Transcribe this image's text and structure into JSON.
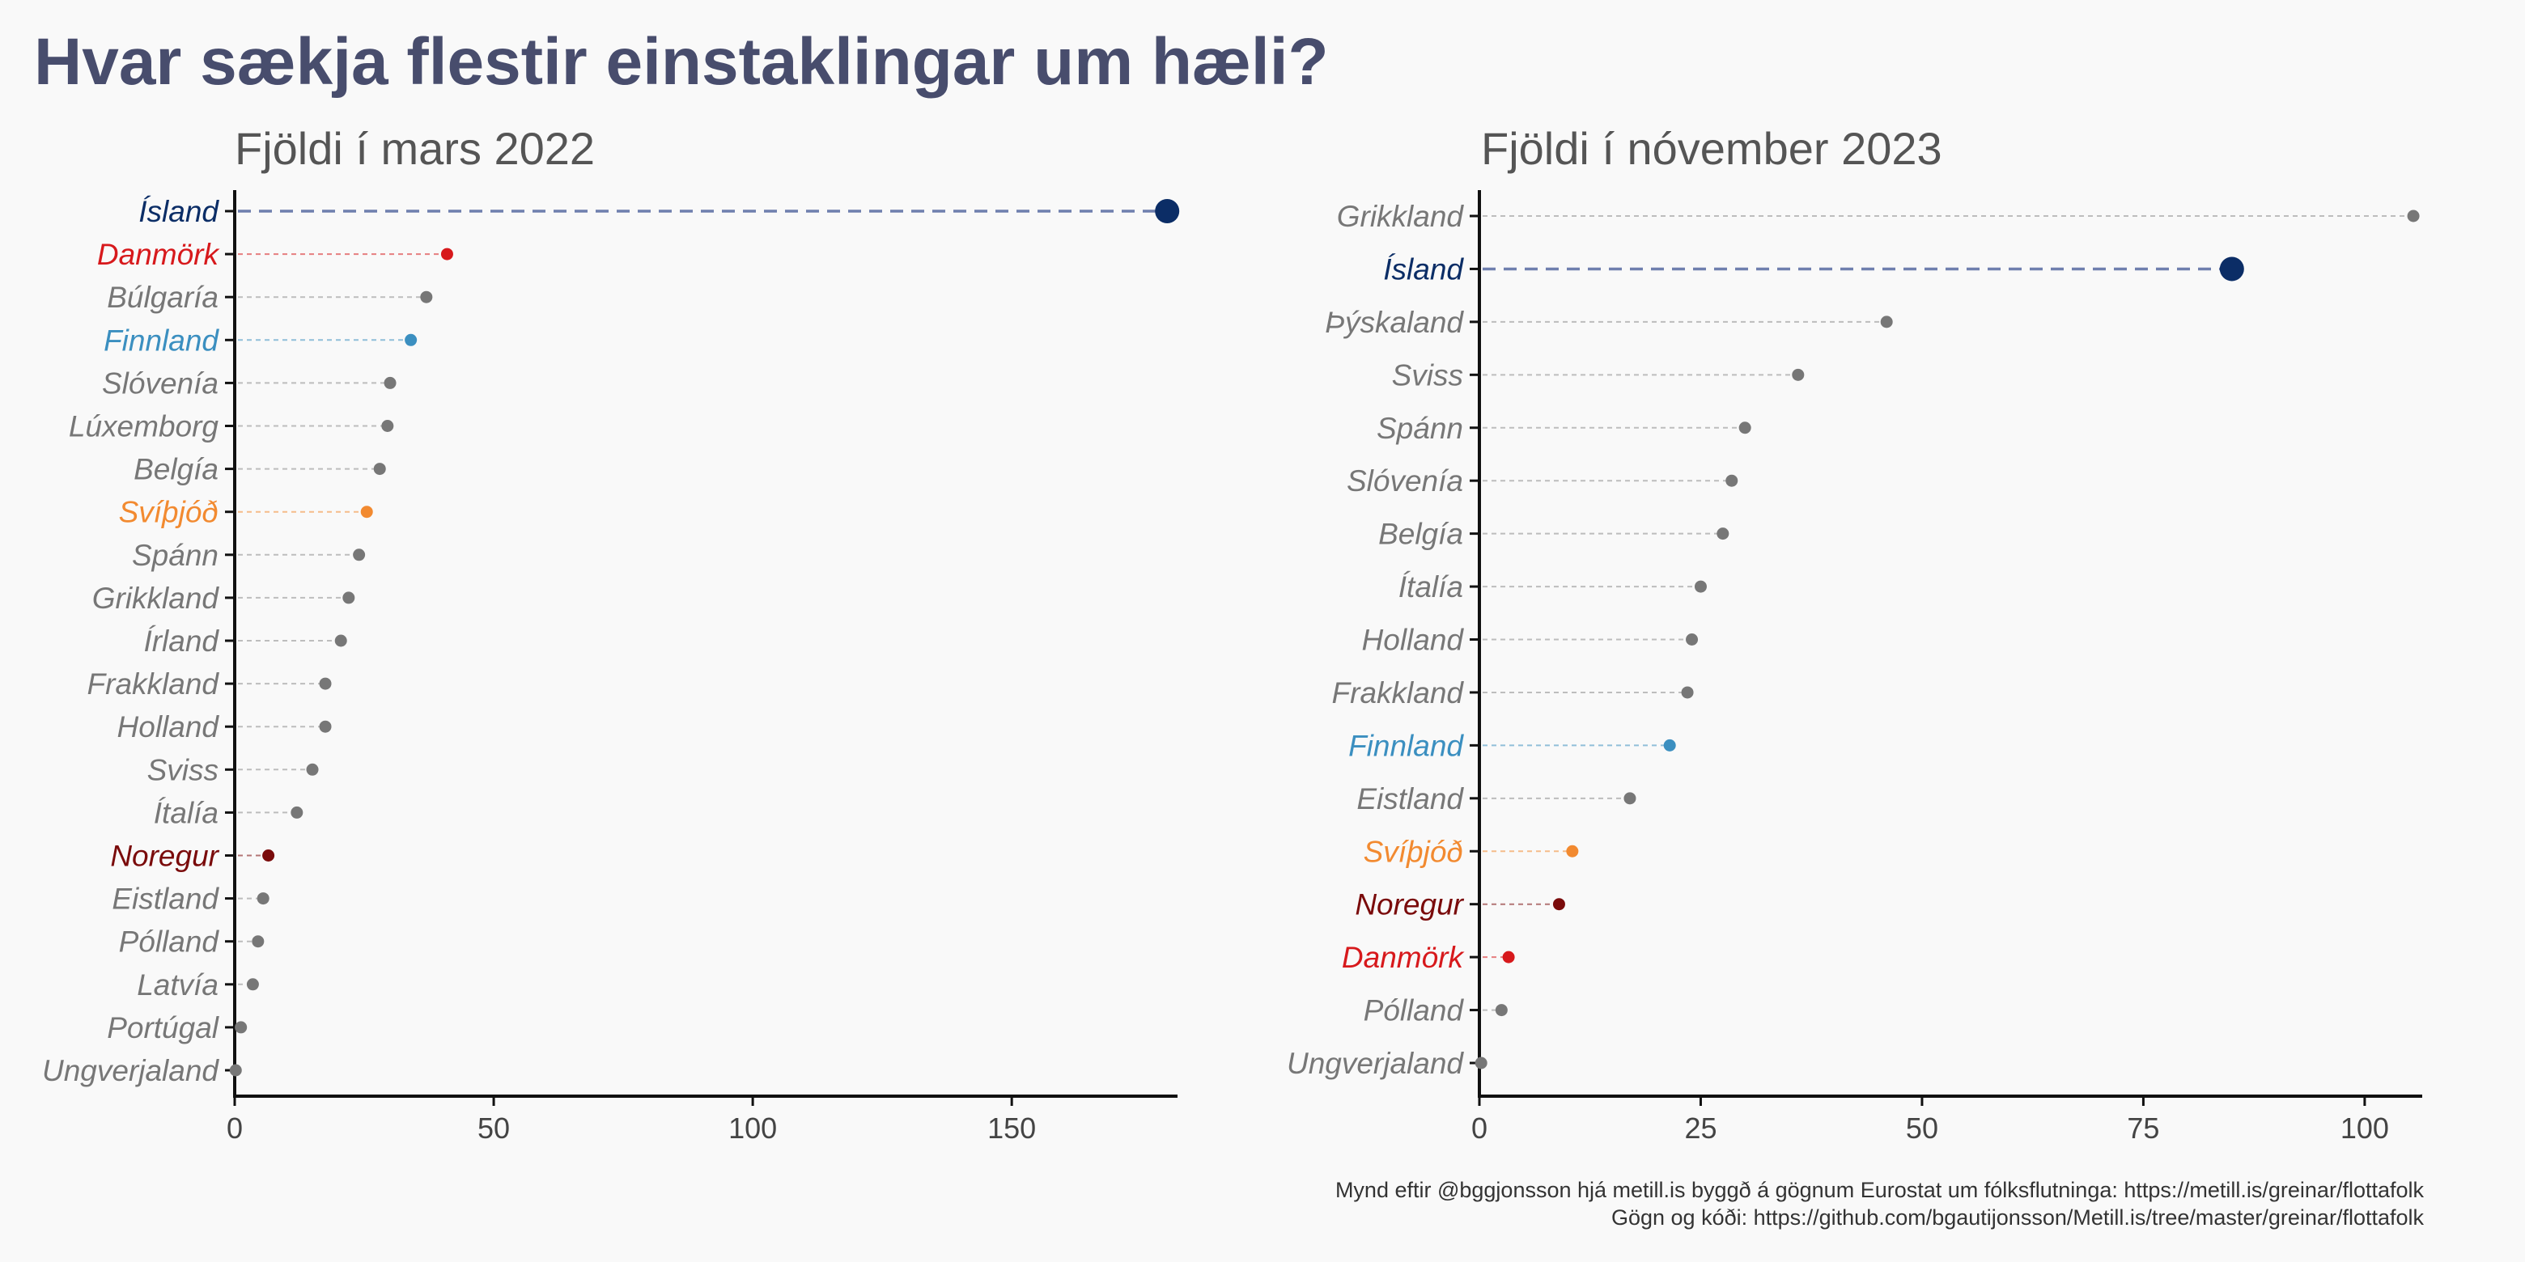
{
  "title": "Hvar sækja flestir einstaklingar um hæli?",
  "colors": {
    "iceland": "#0b2d66",
    "danmark": "#d7191c",
    "finnland": "#3b8fc0",
    "svithjod": "#f28a30",
    "noregur": "#7a0b0b",
    "other": "#777777",
    "title": "#484d6d",
    "subtitle": "#555555"
  },
  "chart_data": [
    {
      "type": "lollipop",
      "subtitle": "Fjöldi í mars 2022",
      "xlim": [
        0,
        182
      ],
      "xticks": [
        0,
        50,
        100,
        150
      ],
      "xlabel": "",
      "ylabel": "",
      "categories": [
        "Ísland",
        "Danmörk",
        "Búlgaría",
        "Finnland",
        "Slóvenía",
        "Lúxemborg",
        "Belgía",
        "Svíþjóð",
        "Spánn",
        "Grikkland",
        "Írland",
        "Frakkland",
        "Holland",
        "Sviss",
        "Ítalía",
        "Noregur",
        "Eistland",
        "Pólland",
        "Latvía",
        "Portúgal",
        "Ungverjaland"
      ],
      "values": [
        180,
        41,
        37,
        34,
        30,
        29.5,
        28,
        25.5,
        24,
        22,
        20.5,
        17.5,
        17.5,
        15,
        12,
        6.5,
        5.5,
        4.5,
        3.5,
        1.2,
        0.2
      ],
      "highlight": [
        "iceland",
        "danmark",
        "other",
        "finnland",
        "other",
        "other",
        "other",
        "svithjod",
        "other",
        "other",
        "other",
        "other",
        "other",
        "other",
        "other",
        "noregur",
        "other",
        "other",
        "other",
        "other",
        "other"
      ]
    },
    {
      "type": "lollipop",
      "subtitle": "Fjöldi í nóvember 2023",
      "xlim": [
        0,
        106.5
      ],
      "xticks": [
        0,
        25,
        50,
        75,
        100
      ],
      "xlabel": "",
      "ylabel": "",
      "categories": [
        "Grikkland",
        "Ísland",
        "Þýskaland",
        "Sviss",
        "Spánn",
        "Slóvenía",
        "Belgía",
        "Ítalía",
        "Holland",
        "Frakkland",
        "Finnland",
        "Eistland",
        "Svíþjóð",
        "Noregur",
        "Danmörk",
        "Pólland",
        "Ungverjaland"
      ],
      "values": [
        105.5,
        85,
        46,
        36,
        30,
        28.5,
        27.5,
        25,
        24,
        23.5,
        21.5,
        17,
        10.5,
        9,
        3.3,
        2.5,
        0.2
      ],
      "highlight": [
        "other",
        "iceland",
        "other",
        "other",
        "other",
        "other",
        "other",
        "other",
        "other",
        "other",
        "finnland",
        "other",
        "svithjod",
        "noregur",
        "danmark",
        "other",
        "other"
      ]
    }
  ],
  "caption": {
    "line1": "Mynd eftir @bggjonsson hjá metill.is byggð á gögnum Eurostat um fólksflutninga: https://metill.is/greinar/flottafolk",
    "line2": "Gögn og kóði: https://github.com/bgautijonsson/Metill.is/tree/master/greinar/flottafolk"
  }
}
